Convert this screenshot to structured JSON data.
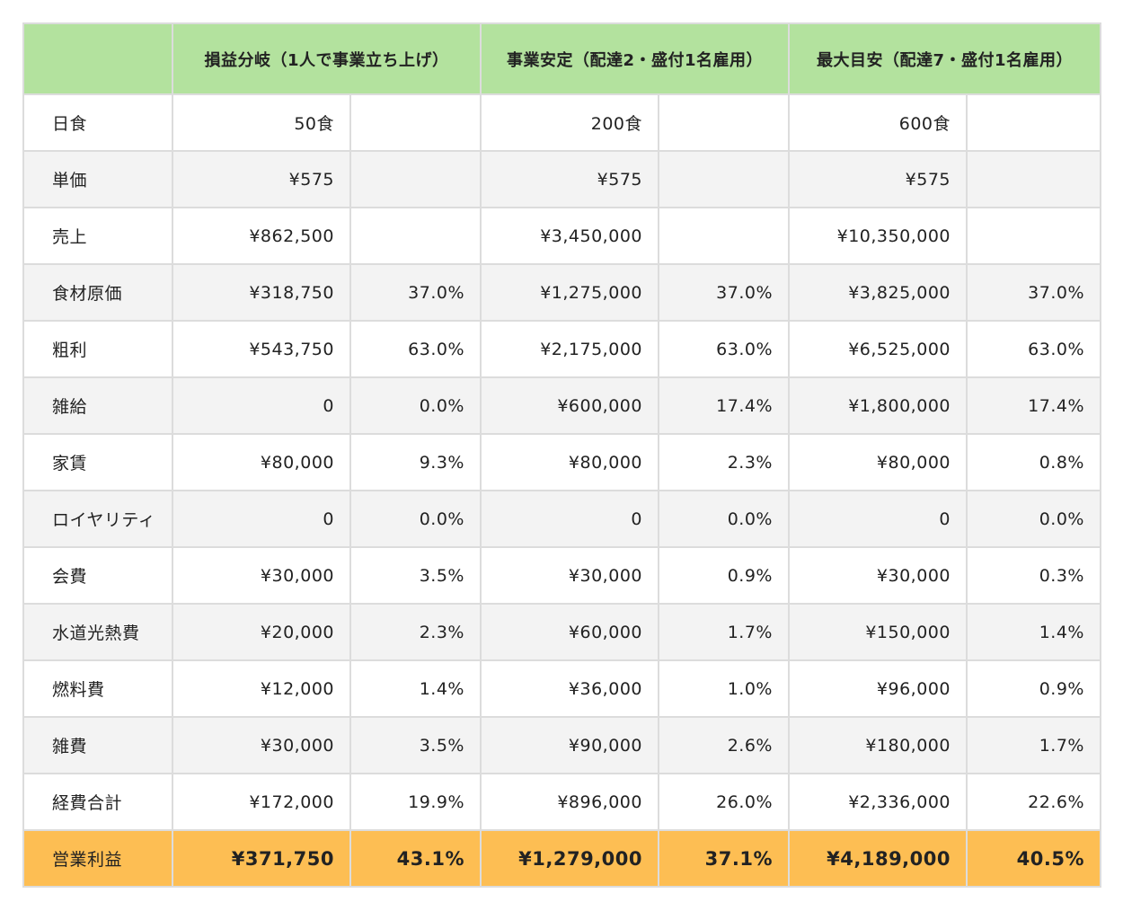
{
  "header": {
    "blank": "",
    "col1": "損益分岐（1人で事業立ち上げ）",
    "col2": "事業安定（配達2・盛付1名雇用）",
    "col3": "最大目安（配達7・盛付1名雇用）"
  },
  "rows": [
    {
      "label": "日食",
      "v1": "50食",
      "p1": "",
      "v2": "200食",
      "p2": "",
      "v3": "600食",
      "p3": ""
    },
    {
      "label": "単価",
      "v1": "¥575",
      "p1": "",
      "v2": "¥575",
      "p2": "",
      "v3": "¥575",
      "p3": ""
    },
    {
      "label": "売上",
      "v1": "¥862,500",
      "p1": "",
      "v2": "¥3,450,000",
      "p2": "",
      "v3": "¥10,350,000",
      "p3": ""
    },
    {
      "label": "食材原価",
      "v1": "¥318,750",
      "p1": "37.0%",
      "v2": "¥1,275,000",
      "p2": "37.0%",
      "v3": "¥3,825,000",
      "p3": "37.0%"
    },
    {
      "label": "粗利",
      "v1": "¥543,750",
      "p1": "63.0%",
      "v2": "¥2,175,000",
      "p2": "63.0%",
      "v3": "¥6,525,000",
      "p3": "63.0%"
    },
    {
      "label": "雑給",
      "v1": "0",
      "p1": "0.0%",
      "v2": "¥600,000",
      "p2": "17.4%",
      "v3": "¥1,800,000",
      "p3": "17.4%"
    },
    {
      "label": "家賃",
      "v1": "¥80,000",
      "p1": "9.3%",
      "v2": "¥80,000",
      "p2": "2.3%",
      "v3": "¥80,000",
      "p3": "0.8%"
    },
    {
      "label": "ロイヤリティ",
      "v1": "0",
      "p1": "0.0%",
      "v2": "0",
      "p2": "0.0%",
      "v3": "0",
      "p3": "0.0%"
    },
    {
      "label": "会費",
      "v1": "¥30,000",
      "p1": "3.5%",
      "v2": "¥30,000",
      "p2": "0.9%",
      "v3": "¥30,000",
      "p3": "0.3%"
    },
    {
      "label": "水道光熱費",
      "v1": "¥20,000",
      "p1": "2.3%",
      "v2": "¥60,000",
      "p2": "1.7%",
      "v3": "¥150,000",
      "p3": "1.4%"
    },
    {
      "label": "燃料費",
      "v1": "¥12,000",
      "p1": "1.4%",
      "v2": "¥36,000",
      "p2": "1.0%",
      "v3": "¥96,000",
      "p3": "0.9%"
    },
    {
      "label": "雑費",
      "v1": "¥30,000",
      "p1": "3.5%",
      "v2": "¥90,000",
      "p2": "2.6%",
      "v3": "¥180,000",
      "p3": "1.7%"
    },
    {
      "label": "経費合計",
      "v1": "¥172,000",
      "p1": "19.9%",
      "v2": "¥896,000",
      "p2": "26.0%",
      "v3": "¥2,336,000",
      "p3": "22.6%"
    },
    {
      "label": "営業利益",
      "v1": "¥371,750",
      "p1": "43.1%",
      "v2": "¥1,279,000",
      "p2": "37.1%",
      "v3": "¥4,189,000",
      "p3": "40.5%"
    }
  ],
  "colors": {
    "header_bg": "#b3e29e",
    "total_bg": "#fdbe53",
    "stripe_bg": "#f3f3f3",
    "border": "#dcdcdc"
  }
}
